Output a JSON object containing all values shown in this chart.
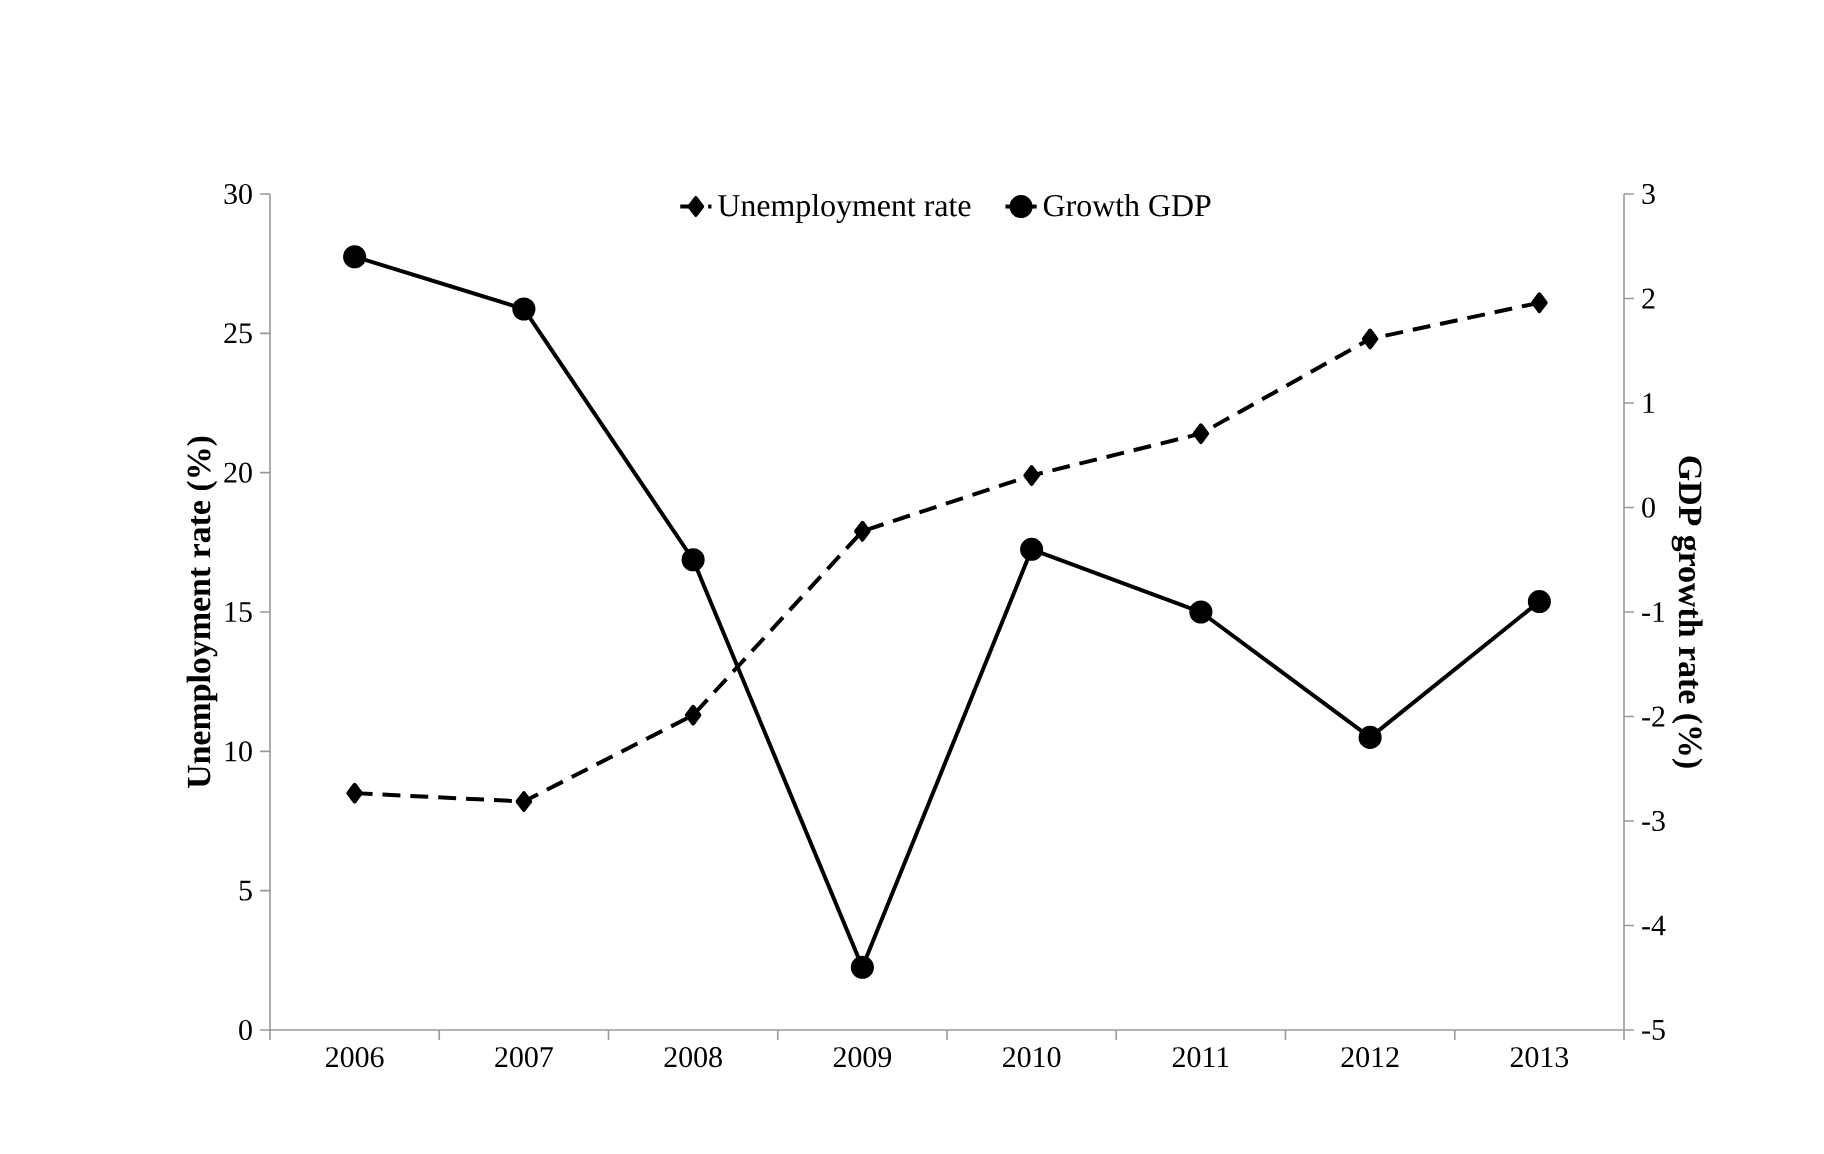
{
  "chart_data": {
    "type": "line",
    "categories": [
      "2006",
      "2007",
      "2008",
      "2009",
      "2010",
      "2011",
      "2012",
      "2013"
    ],
    "series": [
      {
        "name": "Unemployment rate",
        "color": "#000000",
        "marker": "diamond",
        "line_style": "dashed",
        "values": [
          8.5,
          8.2,
          11.3,
          17.9,
          19.9,
          21.4,
          24.8,
          26.1
        ]
      },
      {
        "name": "Growth GDP",
        "color": "#000000",
        "marker": "circle",
        "line_style": "solid",
        "axis": "y2",
        "values": [
          2.4,
          1.9,
          -0.5,
          -4.4,
          -0.4,
          -1.0,
          -2.2,
          -0.9
        ]
      }
    ],
    "ylabel": "Unemployment rate (%)",
    "y2label": "GDP growth rate (%)",
    "ylim": [
      0,
      30
    ],
    "yticks": [
      0,
      5,
      10,
      15,
      20,
      25,
      30
    ],
    "y2lim": [
      -5,
      3
    ],
    "y2ticks": [
      -5,
      -4,
      -3,
      -2,
      -1,
      0,
      1,
      2,
      3
    ],
    "legend": "top",
    "grid": false
  }
}
